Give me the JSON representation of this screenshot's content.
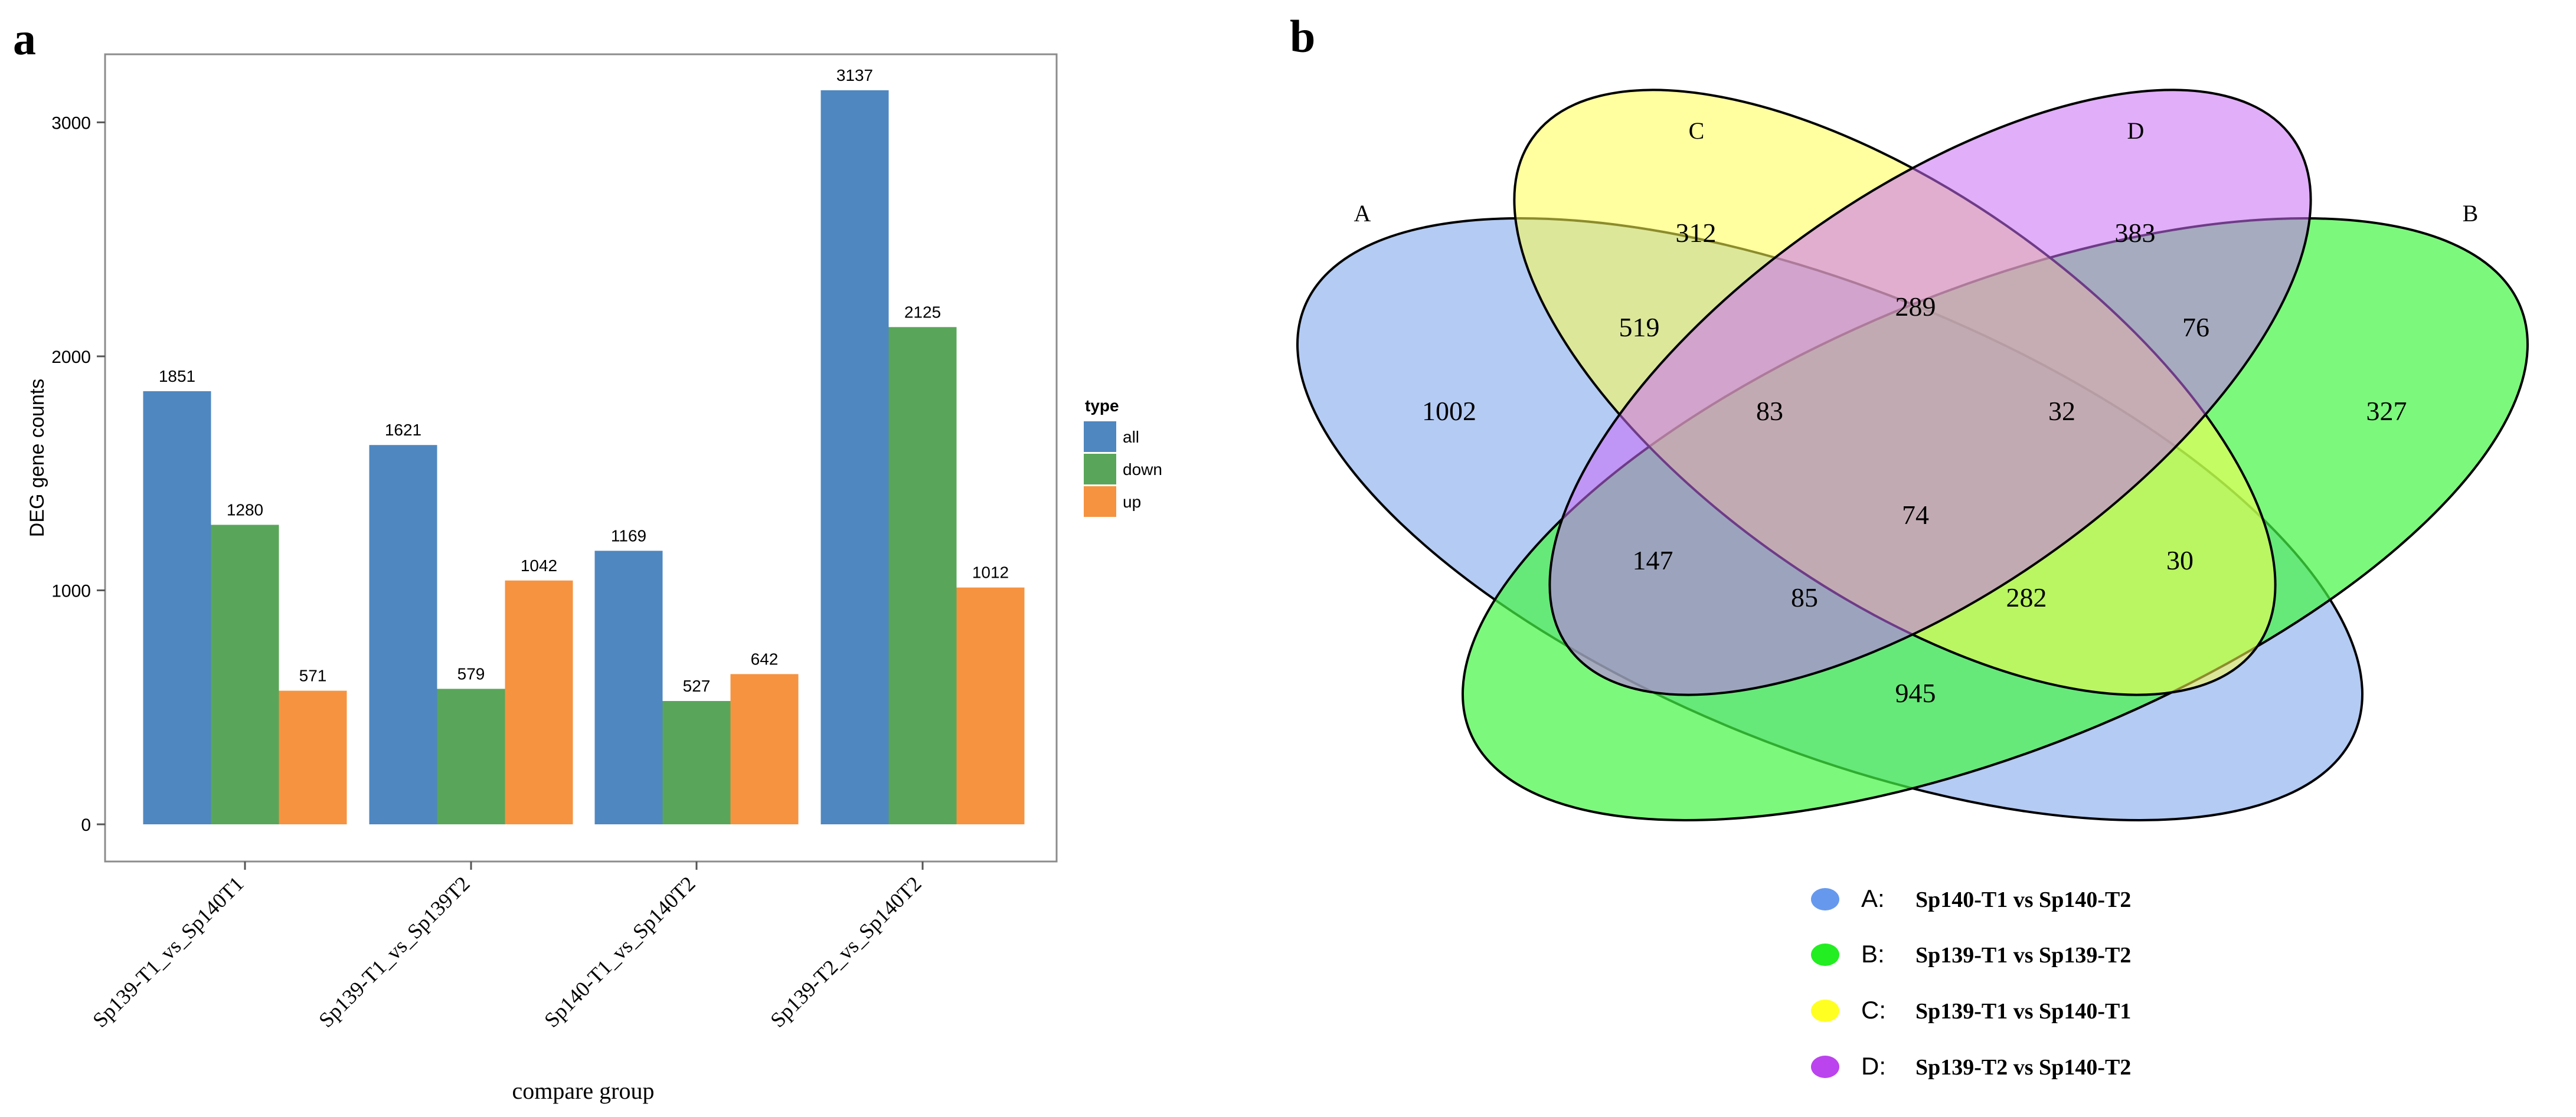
{
  "panels": {
    "a_label": "a",
    "b_label": "b"
  },
  "colors": {
    "all": "#4f87c0",
    "down": "#59a65a",
    "up": "#f59341",
    "venn_a": "#9fbdf0",
    "venn_b": "#45f545",
    "venn_c": "#ffff50",
    "venn_d": "#c86cf6",
    "legend_a": "#6699ee",
    "legend_b": "#22ee22",
    "legend_c": "#ffff22",
    "legend_d": "#bb44ee"
  },
  "chart_data": [
    {
      "type": "bar",
      "categories": [
        "Sp139-T1_vs_Sp140T1",
        "Sp139-T1_vs_Sp139T2",
        "Sp140-T1_vs_Sp140T2",
        "Sp139-T2_vs_Sp140T2"
      ],
      "series": [
        {
          "name": "all",
          "values": [
            1851,
            1621,
            1169,
            3137
          ]
        },
        {
          "name": "down",
          "values": [
            1280,
            579,
            527,
            2125
          ]
        },
        {
          "name": "up",
          "values": [
            571,
            1042,
            642,
            1012
          ]
        }
      ],
      "xlabel": "compare group",
      "ylabel": "DEG gene counts",
      "ylim": [
        0,
        3300
      ],
      "yticks": [
        0,
        1000,
        2000,
        3000
      ],
      "legend_title": "type",
      "legend_position": "right"
    },
    {
      "type": "venn",
      "sets": [
        {
          "id": "A",
          "name": "Sp140-T1 vs Sp140-T2"
        },
        {
          "id": "B",
          "name": "Sp139-T1 vs Sp139-T2"
        },
        {
          "id": "C",
          "name": "Sp139-T1 vs Sp140-T1"
        },
        {
          "id": "D",
          "name": "Sp139-T2 vs Sp140-T2"
        }
      ],
      "regions": [
        {
          "sets": "A",
          "value": 1002
        },
        {
          "sets": "B",
          "value": 327
        },
        {
          "sets": "C",
          "value": 312
        },
        {
          "sets": "D",
          "value": 383
        },
        {
          "sets": "AC",
          "value": 519
        },
        {
          "sets": "CD",
          "value": 289
        },
        {
          "sets": "BD",
          "value": 76
        },
        {
          "sets": "ACD",
          "value": 83
        },
        {
          "sets": "BCD",
          "value": 32
        },
        {
          "sets": "ABCD",
          "value": 74
        },
        {
          "sets": "AD",
          "value": 147
        },
        {
          "sets": "BC",
          "value": 30
        },
        {
          "sets": "ABD",
          "value": 85
        },
        {
          "sets": "ABC",
          "value": 282
        },
        {
          "sets": "AB",
          "value": 945
        }
      ],
      "legend_position": "bottom"
    }
  ]
}
